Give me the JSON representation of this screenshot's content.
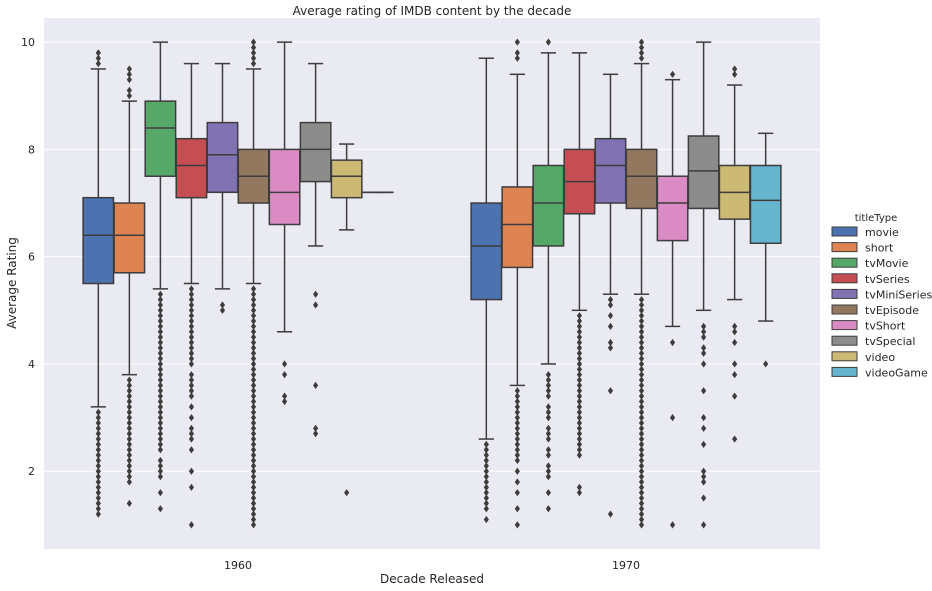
{
  "chart_data": {
    "type": "boxplot",
    "title": "Average rating of IMDB content by the decade",
    "xlabel": "Decade Released",
    "ylabel": "Average Rating",
    "ylim": [
      0.55,
      10.45
    ],
    "yticks": [
      2,
      4,
      6,
      8,
      10
    ],
    "grid": true,
    "legend_title": "titleType",
    "legend_position": "right",
    "categories": [
      "1960",
      "1970"
    ],
    "hue_order": [
      "movie",
      "short",
      "tvMovie",
      "tvSeries",
      "tvMiniSeries",
      "tvEpisode",
      "tvShort",
      "tvSpecial",
      "video",
      "videoGame"
    ],
    "colors": {
      "movie": "#4c72b0",
      "short": "#dd8452",
      "tvMovie": "#55a868",
      "tvSeries": "#c44e52",
      "tvMiniSeries": "#8172b3",
      "tvEpisode": "#937860",
      "tvShort": "#da8bc3",
      "tvSpecial": "#8c8c8c",
      "video": "#ccb974",
      "videoGame": "#64b5cd"
    },
    "boxes": [
      {
        "decade": "1960",
        "type": "movie",
        "whislo": 3.2,
        "q1": 5.5,
        "med": 6.4,
        "q3": 7.1,
        "whishi": 9.5,
        "fliers": [
          9.6,
          9.7,
          9.8,
          3.1,
          3.0,
          2.9,
          2.8,
          2.7,
          2.6,
          2.5,
          2.4,
          2.3,
          2.2,
          2.1,
          2.0,
          1.9,
          1.8,
          1.7,
          1.6,
          1.5,
          1.4,
          1.3,
          1.2
        ]
      },
      {
        "decade": "1960",
        "type": "short",
        "whislo": 3.8,
        "q1": 5.7,
        "med": 6.4,
        "q3": 7.0,
        "whishi": 8.9,
        "fliers": [
          9.0,
          9.1,
          9.3,
          9.4,
          9.5,
          3.7,
          3.6,
          3.5,
          3.4,
          3.3,
          3.2,
          3.1,
          3.0,
          2.9,
          2.8,
          2.7,
          2.6,
          2.5,
          2.4,
          2.3,
          2.2,
          2.1,
          2.0,
          1.9,
          1.8,
          1.4
        ]
      },
      {
        "decade": "1960",
        "type": "tvMovie",
        "whislo": 5.4,
        "q1": 7.5,
        "med": 8.4,
        "q3": 8.9,
        "whishi": 10.0,
        "fliers": [
          5.3,
          5.2,
          5.1,
          5.0,
          4.9,
          4.8,
          4.7,
          4.6,
          4.5,
          4.4,
          4.3,
          4.2,
          4.1,
          4.0,
          3.9,
          3.8,
          3.7,
          3.6,
          3.5,
          3.4,
          3.3,
          3.2,
          3.1,
          3.0,
          2.9,
          2.8,
          2.7,
          2.6,
          2.5,
          2.4,
          2.2,
          2.1,
          2.0,
          1.9,
          1.6,
          1.3
        ]
      },
      {
        "decade": "1960",
        "type": "tvSeries",
        "whislo": 5.5,
        "q1": 7.1,
        "med": 7.7,
        "q3": 8.2,
        "whishi": 9.6,
        "fliers": [
          5.4,
          5.3,
          5.2,
          5.1,
          5.0,
          4.9,
          4.8,
          4.7,
          4.6,
          4.5,
          4.4,
          4.3,
          4.2,
          4.1,
          4.0,
          3.8,
          3.7,
          3.6,
          3.5,
          3.4,
          3.2,
          3.0,
          2.8,
          2.7,
          2.6,
          2.4,
          2.0,
          1.7,
          1.0
        ]
      },
      {
        "decade": "1960",
        "type": "tvMiniSeries",
        "whislo": 5.4,
        "q1": 7.2,
        "med": 7.9,
        "q3": 8.5,
        "whishi": 9.6,
        "fliers": [
          5.1,
          5.0
        ]
      },
      {
        "decade": "1960",
        "type": "tvEpisode",
        "whislo": 5.5,
        "q1": 7.0,
        "med": 7.5,
        "q3": 8.0,
        "whishi": 9.5,
        "fliers": [
          9.6,
          9.7,
          9.8,
          9.9,
          10.0,
          5.4,
          5.3,
          5.2,
          5.1,
          5.0,
          4.9,
          4.8,
          4.7,
          4.6,
          4.5,
          4.4,
          4.3,
          4.2,
          4.1,
          4.0,
          3.9,
          3.8,
          3.7,
          3.6,
          3.5,
          3.4,
          3.3,
          3.2,
          3.1,
          3.0,
          2.9,
          2.8,
          2.7,
          2.6,
          2.5,
          2.4,
          2.3,
          2.2,
          2.1,
          2.0,
          1.9,
          1.8,
          1.7,
          1.6,
          1.5,
          1.4,
          1.3,
          1.2,
          1.1,
          1.0
        ]
      },
      {
        "decade": "1960",
        "type": "tvShort",
        "whislo": 4.6,
        "q1": 6.6,
        "med": 7.2,
        "q3": 8.0,
        "whishi": 10.0,
        "fliers": [
          4.0,
          3.8,
          3.4,
          3.3
        ]
      },
      {
        "decade": "1960",
        "type": "tvSpecial",
        "whislo": 6.2,
        "q1": 7.4,
        "med": 8.0,
        "q3": 8.5,
        "whishi": 9.6,
        "fliers": [
          5.3,
          5.1,
          3.6,
          2.8,
          2.7
        ]
      },
      {
        "decade": "1960",
        "type": "video",
        "whislo": 6.5,
        "q1": 7.1,
        "med": 7.5,
        "q3": 7.8,
        "whishi": 8.1,
        "fliers": [
          1.6
        ]
      },
      {
        "decade": "1960",
        "type": "videoGame",
        "whislo": 7.2,
        "q1": 7.2,
        "med": 7.2,
        "q3": 7.2,
        "whishi": 7.2,
        "fliers": []
      },
      {
        "decade": "1970",
        "type": "movie",
        "whislo": 2.6,
        "q1": 5.2,
        "med": 6.2,
        "q3": 7.0,
        "whishi": 9.7,
        "fliers": [
          2.5,
          2.4,
          2.3,
          2.2,
          2.1,
          2.0,
          1.9,
          1.8,
          1.7,
          1.6,
          1.5,
          1.4,
          1.3,
          1.1
        ]
      },
      {
        "decade": "1970",
        "type": "short",
        "whislo": 3.6,
        "q1": 5.8,
        "med": 6.6,
        "q3": 7.3,
        "whishi": 9.4,
        "fliers": [
          9.7,
          9.8,
          10.0,
          3.5,
          3.4,
          3.3,
          3.2,
          3.1,
          3.0,
          2.9,
          2.8,
          2.7,
          2.6,
          2.5,
          2.4,
          2.3,
          2.2,
          2.0,
          1.8,
          1.6,
          1.3,
          1.0
        ]
      },
      {
        "decade": "1970",
        "type": "tvMovie",
        "whislo": 4.0,
        "q1": 6.2,
        "med": 7.0,
        "q3": 7.7,
        "whishi": 9.8,
        "fliers": [
          10.0,
          3.8,
          3.7,
          3.6,
          3.5,
          3.4,
          3.2,
          3.1,
          3.0,
          2.8,
          2.7,
          2.6,
          2.4,
          2.3,
          2.1,
          2.0,
          1.9,
          1.6,
          1.3
        ]
      },
      {
        "decade": "1970",
        "type": "tvSeries",
        "whislo": 5.0,
        "q1": 6.8,
        "med": 7.4,
        "q3": 8.0,
        "whishi": 9.8,
        "fliers": [
          4.9,
          4.8,
          4.7,
          4.6,
          4.5,
          4.4,
          4.3,
          4.2,
          4.1,
          4.0,
          3.9,
          3.8,
          3.7,
          3.6,
          3.5,
          3.4,
          3.3,
          3.2,
          3.1,
          3.0,
          2.9,
          2.8,
          2.7,
          2.6,
          2.5,
          2.4,
          2.3,
          1.7,
          1.6
        ]
      },
      {
        "decade": "1970",
        "type": "tvMiniSeries",
        "whislo": 5.3,
        "q1": 7.0,
        "med": 7.7,
        "q3": 8.2,
        "whishi": 9.4,
        "fliers": [
          5.2,
          5.1,
          4.9,
          4.7,
          4.4,
          4.3,
          3.5,
          1.2
        ]
      },
      {
        "decade": "1970",
        "type": "tvEpisode",
        "whislo": 5.3,
        "q1": 6.9,
        "med": 7.5,
        "q3": 8.0,
        "whishi": 9.6,
        "fliers": [
          9.7,
          9.8,
          9.9,
          10.0,
          5.2,
          5.1,
          5.0,
          4.9,
          4.8,
          4.7,
          4.6,
          4.5,
          4.4,
          4.3,
          4.2,
          4.1,
          4.0,
          3.9,
          3.8,
          3.7,
          3.6,
          3.5,
          3.4,
          3.3,
          3.2,
          3.1,
          3.0,
          2.9,
          2.8,
          2.7,
          2.6,
          2.5,
          2.4,
          2.3,
          2.2,
          2.1,
          2.0,
          1.9,
          1.8,
          1.7,
          1.6,
          1.5,
          1.4,
          1.3,
          1.2,
          1.1,
          1.0
        ]
      },
      {
        "decade": "1970",
        "type": "tvShort",
        "whislo": 4.7,
        "q1": 6.3,
        "med": 7.0,
        "q3": 7.5,
        "whishi": 9.3,
        "fliers": [
          9.4,
          4.4,
          3.0,
          1.0
        ]
      },
      {
        "decade": "1970",
        "type": "tvSpecial",
        "whislo": 5.0,
        "q1": 6.9,
        "med": 7.6,
        "q3": 8.25,
        "whishi": 10.0,
        "fliers": [
          4.7,
          4.6,
          4.5,
          4.3,
          4.2,
          4.0,
          3.5,
          3.0,
          2.8,
          2.5,
          2.0,
          1.9,
          1.8,
          1.5,
          1.0
        ]
      },
      {
        "decade": "1970",
        "type": "video",
        "whislo": 5.2,
        "q1": 6.7,
        "med": 7.2,
        "q3": 7.7,
        "whishi": 9.2,
        "fliers": [
          9.4,
          9.5,
          4.7,
          4.6,
          4.4,
          4.0,
          3.8,
          3.4,
          2.6
        ]
      },
      {
        "decade": "1970",
        "type": "videoGame",
        "whislo": 4.8,
        "q1": 6.25,
        "med": 7.05,
        "q3": 7.7,
        "whishi": 8.3,
        "fliers": [
          4.0
        ]
      }
    ]
  }
}
